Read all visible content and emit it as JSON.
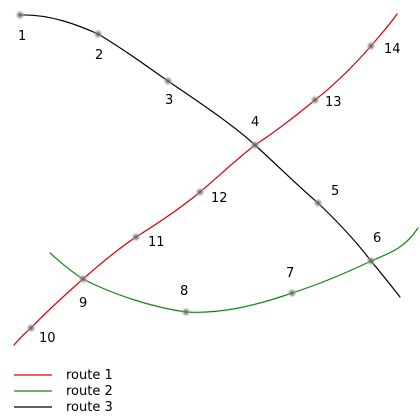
{
  "colors": {
    "route1": "#dd0000",
    "route2": "#118811",
    "route3": "#000000"
  },
  "stops": [
    {
      "id": "1",
      "label": "1"
    },
    {
      "id": "2",
      "label": "2"
    },
    {
      "id": "3",
      "label": "3"
    },
    {
      "id": "4",
      "label": "4"
    },
    {
      "id": "5",
      "label": "5"
    },
    {
      "id": "6",
      "label": "6"
    },
    {
      "id": "7",
      "label": "7"
    },
    {
      "id": "8",
      "label": "8"
    },
    {
      "id": "9",
      "label": "9"
    },
    {
      "id": "10",
      "label": "10"
    },
    {
      "id": "11",
      "label": "11"
    },
    {
      "id": "12",
      "label": "12"
    },
    {
      "id": "13",
      "label": "13"
    },
    {
      "id": "14",
      "label": "14"
    }
  ],
  "legend": {
    "route1": "route 1",
    "route2": "route 2",
    "route3": "route 3"
  }
}
